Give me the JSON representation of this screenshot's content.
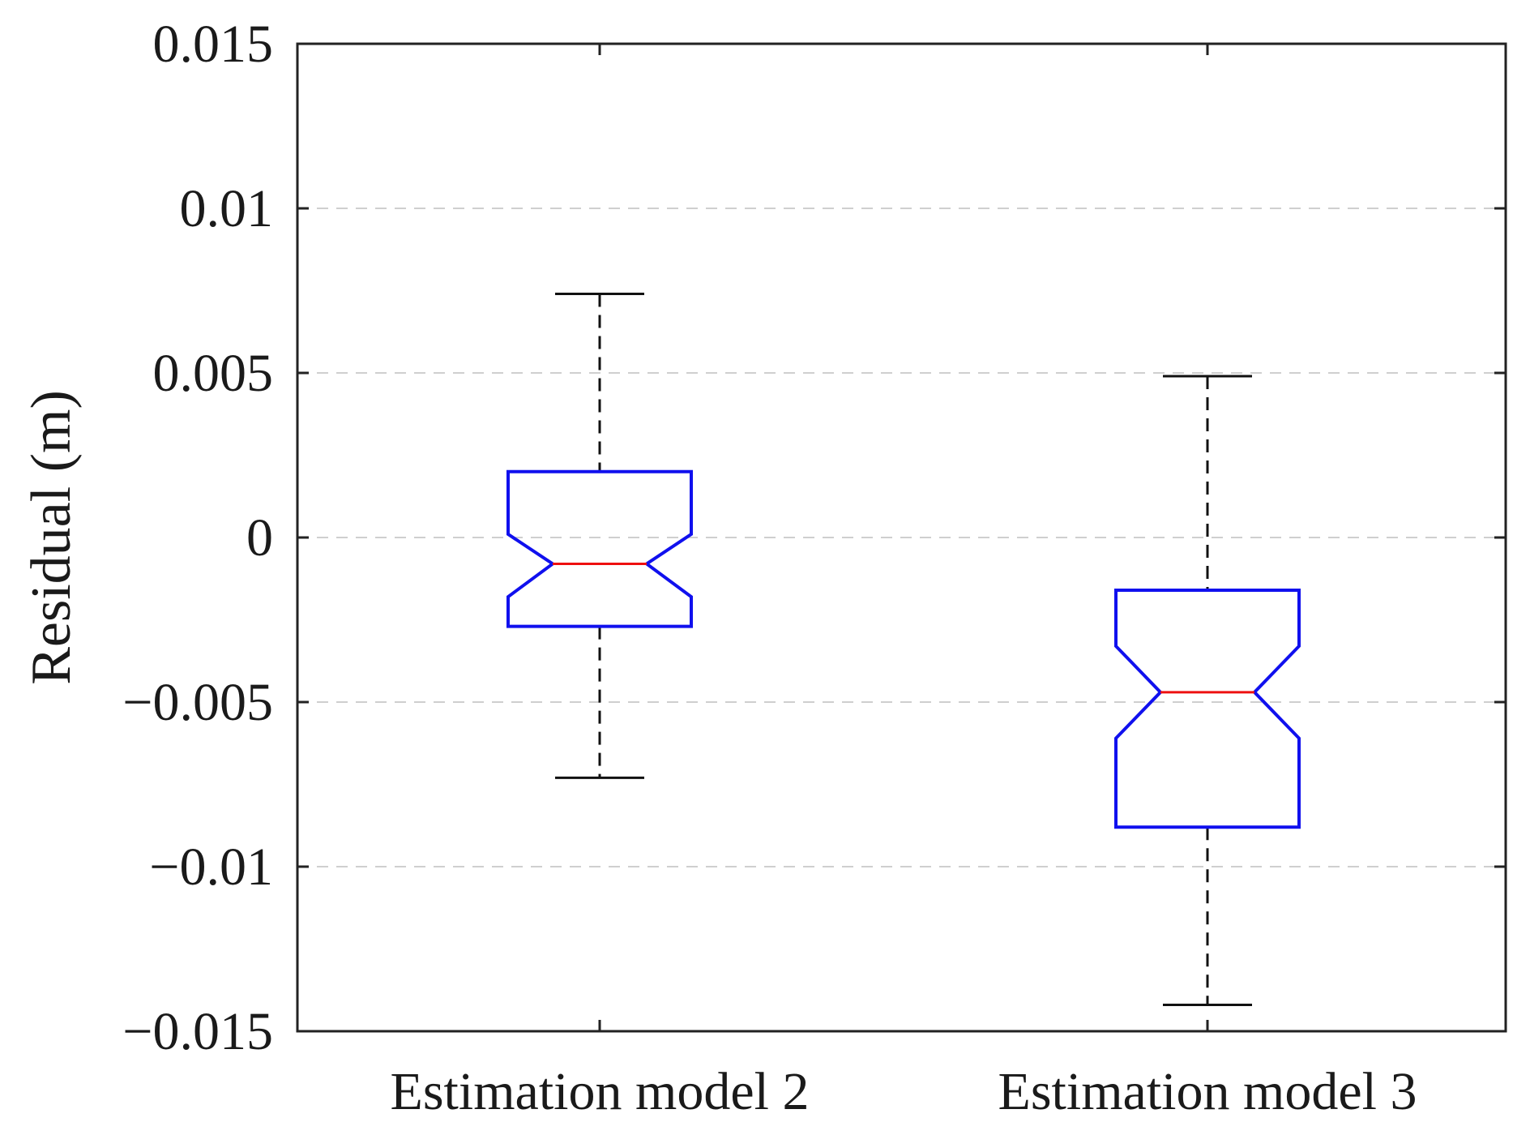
{
  "chart_data": {
    "type": "boxplot",
    "notched": true,
    "title": "",
    "xlabel": "",
    "ylabel": "Residual (m)",
    "ylim": [
      -0.015,
      0.015
    ],
    "yticks": [
      0.015,
      0.01,
      0.005,
      0,
      -0.005,
      -0.01,
      -0.015
    ],
    "ytick_labels": [
      "0.015",
      "0.01",
      "0.005",
      "0",
      "−0.005",
      "−0.01",
      "−0.015"
    ],
    "grid": "horizontal dashed",
    "categories": [
      "Estimation model 2",
      "Estimation model 3"
    ],
    "series": [
      {
        "name": "Estimation model 2",
        "whisker_high": 0.0074,
        "q3": 0.002,
        "notch_high": 0.0001,
        "median": -0.0008,
        "notch_low": -0.0018,
        "q1": -0.0027,
        "whisker_low": -0.0073
      },
      {
        "name": "Estimation model 3",
        "whisker_high": 0.0049,
        "q3": -0.0016,
        "notch_high": -0.0033,
        "median": -0.0047,
        "notch_low": -0.0061,
        "q1": -0.0088,
        "whisker_low": -0.0142
      }
    ],
    "colors": {
      "box": "#1010ee",
      "median": "#ee1010",
      "whisker": "#111111",
      "grid": "#cfcfcf",
      "axis": "#222222"
    }
  }
}
